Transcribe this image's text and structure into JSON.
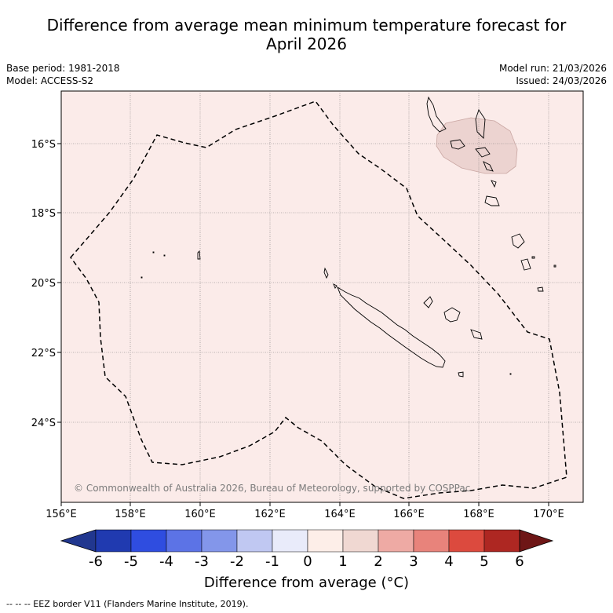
{
  "title": {
    "line1": "Difference from average mean minimum temperature forecast for",
    "line2": "April 2026"
  },
  "meta": {
    "base_period": "Base period: 1981-2018",
    "model": "Model: ACCESS-S2",
    "model_run": "Model run: 21/03/2026",
    "issued": "Issued: 24/03/2026"
  },
  "map": {
    "copyright": "© Commonwealth of Australia 2026, Bureau of Meteorology, supported by COSPPac",
    "lat_labels": [
      "16°S",
      "18°S",
      "20°S",
      "22°S",
      "24°S"
    ],
    "lon_labels": [
      "156°E",
      "158°E",
      "160°E",
      "162°E",
      "164°E",
      "166°E",
      "168°E",
      "170°E"
    ],
    "background_anomaly": "0 to 1",
    "warm_patch_anomaly": "1 to 2"
  },
  "colorbar": {
    "title": "Difference from average (°C)",
    "ticks": [
      "-6",
      "-5",
      "-4",
      "-3",
      "-2",
      "-1",
      "0",
      "1",
      "2",
      "3",
      "4",
      "5",
      "6"
    ],
    "colors": [
      "#21378f",
      "#203ab0",
      "#2f4de0",
      "#5c73e6",
      "#8396ea",
      "#c0c8f2",
      "#e9ebfa",
      "#fdeee8",
      "#f0d8d2",
      "#eeaaa4",
      "#e8837b",
      "#dc4a3e",
      "#ae2722",
      "#6e1616"
    ]
  },
  "footer": {
    "legend": "--  --  -- EEZ border V11 (Flanders Marine Institute, 2019)."
  }
}
